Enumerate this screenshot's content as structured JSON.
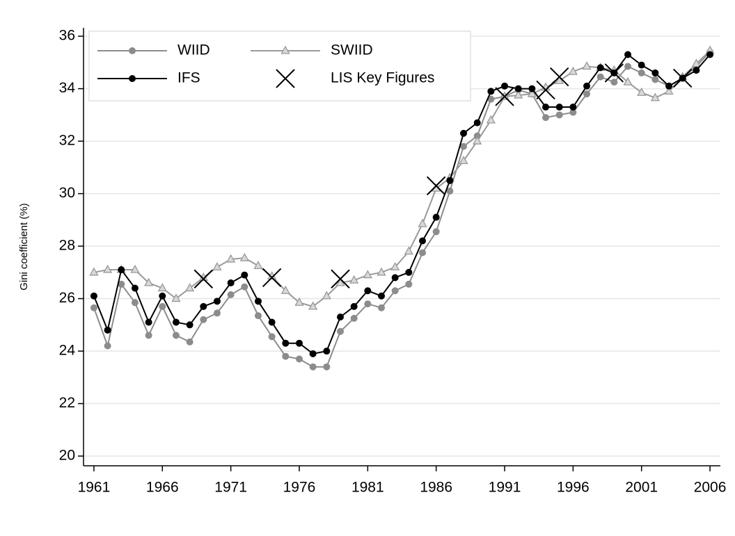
{
  "chart_data": {
    "type": "line",
    "y_label": "Gini coefficient (%)",
    "xlim": [
      1960.24,
      2006.76
    ],
    "ylim": [
      19.63,
      36.32
    ],
    "xticks": [
      1961,
      1966,
      1971,
      1976,
      1981,
      1986,
      1991,
      1996,
      2001,
      2006
    ],
    "yticks": [
      20,
      22,
      24,
      26,
      28,
      30,
      32,
      34,
      36
    ],
    "grid": true,
    "legend": "top-left",
    "series": [
      {
        "name": "WIID",
        "color": "#8c8c8c",
        "marker": "circle",
        "line": true,
        "x": [
          1961,
          1962,
          1963,
          1964,
          1965,
          1966,
          1967,
          1968,
          1969,
          1970,
          1971,
          1972,
          1973,
          1974,
          1975,
          1976,
          1977,
          1978,
          1979,
          1980,
          1981,
          1982,
          1983,
          1984,
          1985,
          1986,
          1987,
          1988,
          1989,
          1990,
          1991,
          1992,
          1993,
          1994,
          1995,
          1996,
          1997,
          1998,
          1999,
          2000,
          2001,
          2002,
          2003,
          2004,
          2005,
          2006
        ],
        "values": [
          25.65,
          24.2,
          26.55,
          25.85,
          24.6,
          25.7,
          24.6,
          24.35,
          25.2,
          25.45,
          26.15,
          26.45,
          25.35,
          24.55,
          23.8,
          23.7,
          23.4,
          23.4,
          24.75,
          25.25,
          25.8,
          25.65,
          26.3,
          26.55,
          27.75,
          28.55,
          30.1,
          31.8,
          32.2,
          33.6,
          33.7,
          33.95,
          33.8,
          32.9,
          33.0,
          33.1,
          33.8,
          34.45,
          34.25,
          34.85,
          34.6,
          34.35,
          34.1,
          34.4,
          34.85,
          35.4
        ]
      },
      {
        "name": "SWIID",
        "color": "#999999",
        "marker": "triangle",
        "line": true,
        "x": [
          1961,
          1962,
          1963,
          1964,
          1965,
          1966,
          1967,
          1968,
          1969,
          1970,
          1971,
          1972,
          1973,
          1974,
          1975,
          1976,
          1977,
          1978,
          1979,
          1980,
          1981,
          1982,
          1983,
          1984,
          1985,
          1986,
          1987,
          1988,
          1989,
          1990,
          1991,
          1992,
          1993,
          1994,
          1995,
          1996,
          1997,
          1998,
          1999,
          2000,
          2001,
          2002,
          2003,
          2004,
          2005,
          2006
        ],
        "values": [
          27.0,
          27.1,
          27.1,
          27.1,
          26.6,
          26.4,
          26.0,
          26.4,
          26.8,
          27.2,
          27.5,
          27.55,
          27.25,
          26.85,
          26.3,
          25.85,
          25.7,
          26.1,
          26.6,
          26.7,
          26.9,
          27.0,
          27.2,
          27.8,
          28.85,
          30.2,
          30.6,
          31.25,
          32.0,
          32.8,
          33.7,
          33.75,
          33.8,
          34.05,
          34.3,
          34.65,
          34.85,
          34.8,
          34.7,
          34.25,
          33.85,
          33.65,
          33.9,
          34.45,
          34.95,
          35.45
        ]
      },
      {
        "name": "IFS",
        "color": "#000000",
        "marker": "circle",
        "line": true,
        "x": [
          1961,
          1962,
          1963,
          1964,
          1965,
          1966,
          1967,
          1968,
          1969,
          1970,
          1971,
          1972,
          1973,
          1974,
          1975,
          1976,
          1977,
          1978,
          1979,
          1980,
          1981,
          1982,
          1983,
          1984,
          1985,
          1986,
          1987,
          1988,
          1989,
          1990,
          1991,
          1992,
          1993,
          1994,
          1995,
          1996,
          1997,
          1998,
          1999,
          2000,
          2001,
          2002,
          2003,
          2004,
          2005,
          2006
        ],
        "values": [
          26.1,
          24.8,
          27.1,
          26.4,
          25.1,
          26.1,
          25.1,
          25.0,
          25.7,
          25.9,
          26.6,
          26.9,
          25.9,
          25.1,
          24.3,
          24.3,
          23.9,
          24.0,
          25.3,
          25.7,
          26.3,
          26.1,
          26.8,
          27.0,
          28.2,
          29.1,
          30.5,
          32.3,
          32.7,
          33.9,
          34.1,
          34.0,
          34.0,
          33.3,
          33.3,
          33.3,
          34.1,
          34.8,
          34.6,
          35.3,
          34.9,
          34.6,
          34.1,
          34.4,
          34.7,
          35.3
        ]
      },
      {
        "name": "LIS Key Figures",
        "color": "#000000",
        "marker": "x",
        "line": false,
        "x": [
          1969,
          1974,
          1979,
          1986,
          1991,
          1994,
          1995,
          1999,
          2004
        ],
        "values": [
          26.75,
          26.8,
          26.75,
          30.3,
          33.7,
          33.95,
          34.45,
          34.6,
          34.4
        ]
      }
    ]
  }
}
